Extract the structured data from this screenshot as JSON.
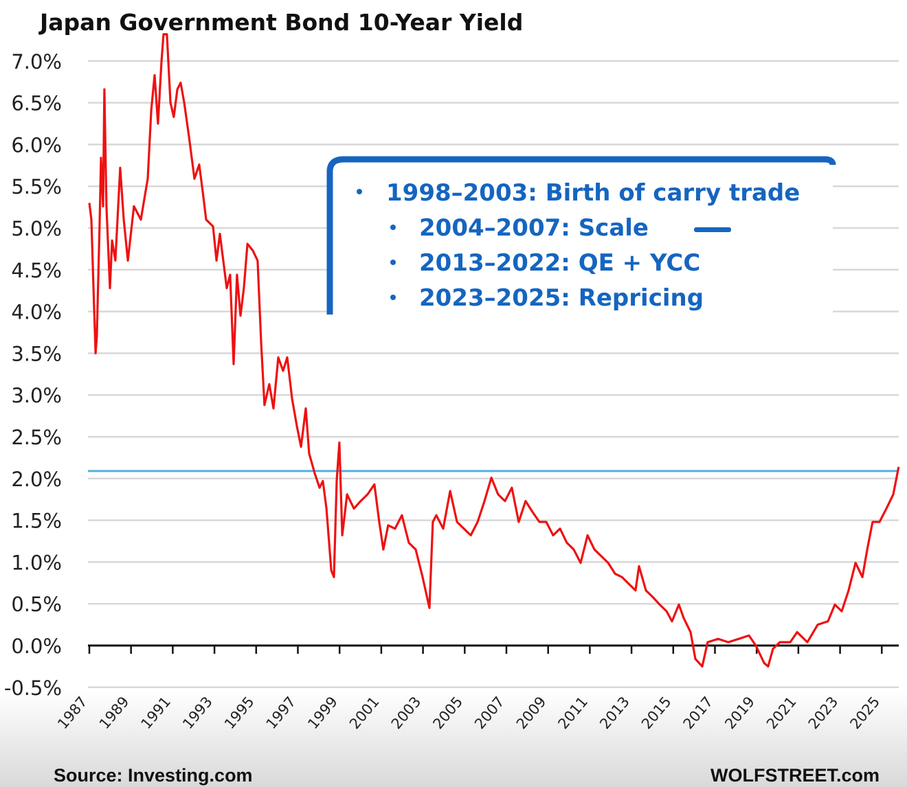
{
  "chart_data": {
    "type": "line",
    "title": "Japan Government Bond 10-Year Yield",
    "xlabel": "",
    "ylabel": "",
    "xlim": [
      1987,
      2025.8
    ],
    "ylim": [
      -0.5,
      7.0
    ],
    "y_ticks": [
      "7.0%",
      "6.5%",
      "6.0%",
      "5.5%",
      "5.0%",
      "4.5%",
      "4.0%",
      "3.5%",
      "3.0%",
      "2.5%",
      "2.0%",
      "1.5%",
      "1.0%",
      "0.5%",
      "0.0%",
      "-0.5%"
    ],
    "y_tick_values": [
      7.0,
      6.5,
      6.0,
      5.5,
      5.0,
      4.5,
      4.0,
      3.5,
      3.0,
      2.5,
      2.0,
      1.5,
      1.0,
      0.5,
      0.0,
      -0.5
    ],
    "x_ticks": [
      "1987",
      "1989",
      "1991",
      "1993",
      "1995",
      "1997",
      "1999",
      "2001",
      "2003",
      "2005",
      "2007",
      "2009",
      "2011",
      "2013",
      "2015",
      "2017",
      "2019",
      "2021",
      "2023",
      "2025"
    ],
    "grid": true,
    "series_color": "#ee1111",
    "reference_line": {
      "value": 2.09,
      "color": "#4fb3e0"
    },
    "x": [
      1987.0,
      1987.1,
      1987.23,
      1987.3,
      1987.36,
      1987.49,
      1987.56,
      1987.66,
      1987.72,
      1987.82,
      1987.99,
      1988.09,
      1988.25,
      1988.48,
      1988.65,
      1988.85,
      1989.14,
      1989.47,
      1989.64,
      1989.8,
      1989.97,
      1990.13,
      1990.29,
      1990.46,
      1990.56,
      1990.72,
      1990.89,
      1991.05,
      1991.22,
      1991.38,
      1991.55,
      1991.78,
      1992.04,
      1992.27,
      1992.44,
      1992.6,
      1992.93,
      1993.1,
      1993.26,
      1993.59,
      1993.75,
      1993.92,
      1994.08,
      1994.25,
      1994.41,
      1994.58,
      1994.84,
      1995.07,
      1995.24,
      1995.4,
      1995.63,
      1995.83,
      1996.06,
      1996.29,
      1996.49,
      1996.72,
      1996.95,
      1997.15,
      1997.38,
      1997.54,
      1997.81,
      1998.04,
      1998.2,
      1998.37,
      1998.6,
      1998.73,
      1998.86,
      1998.99,
      1999.13,
      1999.36,
      1999.69,
      2000.01,
      2000.34,
      2000.67,
      2000.9,
      2001.1,
      2001.33,
      2001.66,
      2001.99,
      2002.32,
      2002.65,
      2002.98,
      2003.31,
      2003.47,
      2003.64,
      2003.97,
      2004.3,
      2004.63,
      2004.96,
      2005.29,
      2005.62,
      2005.95,
      2006.28,
      2006.6,
      2006.93,
      2007.26,
      2007.59,
      2007.92,
      2008.25,
      2008.58,
      2008.91,
      2009.24,
      2009.57,
      2009.9,
      2010.23,
      2010.56,
      2010.89,
      2011.22,
      2011.55,
      2011.88,
      2012.21,
      2012.54,
      2012.86,
      2013.19,
      2013.36,
      2013.69,
      2014.02,
      2014.35,
      2014.68,
      2014.94,
      2015.27,
      2015.5,
      2015.83,
      2016.06,
      2016.39,
      2016.65,
      2017.15,
      2017.64,
      2018.14,
      2018.63,
      2018.96,
      2019.36,
      2019.55,
      2019.78,
      2020.11,
      2020.61,
      2020.94,
      2021.43,
      2021.93,
      2022.42,
      2022.75,
      2023.08,
      2023.41,
      2023.74,
      2024.07,
      2024.3,
      2024.56,
      2024.89,
      2025.22,
      2025.55,
      2025.81
    ],
    "y": [
      5.3,
      5.1,
      4.03,
      3.5,
      3.7,
      5.02,
      5.84,
      5.26,
      6.66,
      5.26,
      4.28,
      4.85,
      4.61,
      5.72,
      5.1,
      4.61,
      5.26,
      5.1,
      5.35,
      5.59,
      6.41,
      6.83,
      6.25,
      6.99,
      7.32,
      7.32,
      6.5,
      6.33,
      6.66,
      6.74,
      6.5,
      6.09,
      5.59,
      5.76,
      5.43,
      5.1,
      5.02,
      4.61,
      4.93,
      4.28,
      4.44,
      3.37,
      4.44,
      3.95,
      4.28,
      4.81,
      4.73,
      4.61,
      3.62,
      2.88,
      3.13,
      2.84,
      3.45,
      3.29,
      3.45,
      2.96,
      2.63,
      2.38,
      2.84,
      2.3,
      2.06,
      1.89,
      1.97,
      1.64,
      0.9,
      0.82,
      1.97,
      2.43,
      1.32,
      1.81,
      1.64,
      1.73,
      1.81,
      1.93,
      1.48,
      1.15,
      1.44,
      1.4,
      1.56,
      1.23,
      1.15,
      0.82,
      0.45,
      1.48,
      1.56,
      1.4,
      1.85,
      1.48,
      1.4,
      1.32,
      1.48,
      1.73,
      2.01,
      1.81,
      1.73,
      1.89,
      1.48,
      1.73,
      1.6,
      1.48,
      1.48,
      1.32,
      1.4,
      1.23,
      1.15,
      0.99,
      1.32,
      1.15,
      1.07,
      0.99,
      0.86,
      0.82,
      0.74,
      0.66,
      0.95,
      0.66,
      0.58,
      0.49,
      0.41,
      0.29,
      0.49,
      0.33,
      0.16,
      -0.16,
      -0.25,
      0.04,
      0.08,
      0.04,
      0.08,
      0.12,
      0.0,
      -0.21,
      -0.25,
      -0.04,
      0.04,
      0.04,
      0.16,
      0.04,
      0.25,
      0.29,
      0.49,
      0.41,
      0.66,
      0.99,
      0.82,
      1.15,
      1.48,
      1.48,
      1.64,
      1.81,
      2.14
    ],
    "annotations": {
      "color": "#1565c0",
      "items": [
        "1998–2003: Birth of carry trade",
        "2004–2007: Scale",
        "2013–2022: QE + YCC",
        "2023–2025: Repricing"
      ]
    },
    "source": "Source: Investing.com",
    "brand": "WOLFSTREET.com"
  }
}
